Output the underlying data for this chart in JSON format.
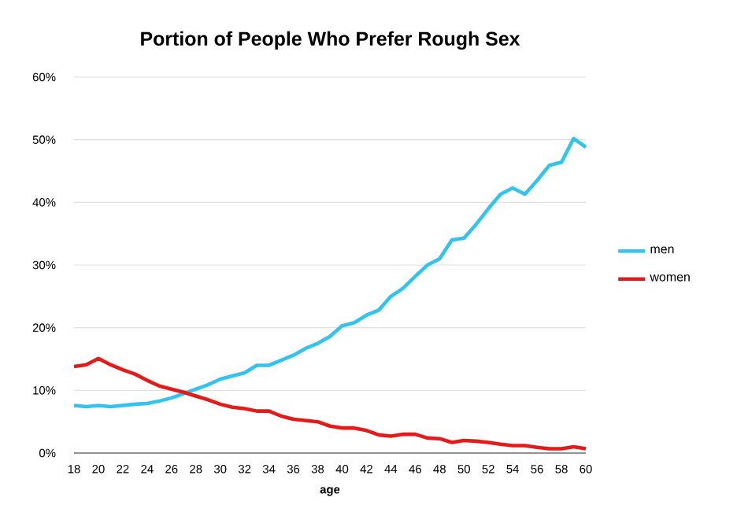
{
  "chart_data": {
    "type": "line",
    "title": "Portion of People Who Prefer Rough Sex",
    "xlabel": "age",
    "x": [
      18,
      19,
      20,
      21,
      22,
      23,
      24,
      25,
      26,
      27,
      28,
      29,
      30,
      31,
      32,
      33,
      34,
      35,
      36,
      37,
      38,
      39,
      40,
      41,
      42,
      43,
      44,
      45,
      46,
      47,
      48,
      49,
      50,
      51,
      52,
      53,
      54,
      55,
      56,
      57,
      58,
      59,
      60
    ],
    "series": [
      {
        "name": "men",
        "color": "#33c3ee",
        "values": [
          7.6,
          7.4,
          7.6,
          7.4,
          7.6,
          7.8,
          7.9,
          8.3,
          8.8,
          9.5,
          10.2,
          10.9,
          11.8,
          12.3,
          12.8,
          14.0,
          14.0,
          14.8,
          15.6,
          16.7,
          17.5,
          18.6,
          20.3,
          20.8,
          22.0,
          22.8,
          25.0,
          26.3,
          28.2,
          30.0,
          31.0,
          34.0,
          34.3,
          36.5,
          39.0,
          41.3,
          42.3,
          41.3,
          43.5,
          45.9,
          46.4,
          50.2,
          48.8
        ]
      },
      {
        "name": "women",
        "color": "#e41b1b",
        "values": [
          13.8,
          14.1,
          15.1,
          14.1,
          13.3,
          12.6,
          11.6,
          10.7,
          10.2,
          9.7,
          9.1,
          8.5,
          7.8,
          7.3,
          7.1,
          6.7,
          6.7,
          5.9,
          5.4,
          5.2,
          5.0,
          4.3,
          4.0,
          4.0,
          3.6,
          2.9,
          2.7,
          3.0,
          3.0,
          2.4,
          2.3,
          1.7,
          2.0,
          1.9,
          1.7,
          1.4,
          1.2,
          1.2,
          0.9,
          0.7,
          0.7,
          1.0,
          0.7
        ]
      }
    ],
    "xlim": [
      18,
      60
    ],
    "xticks": [
      18,
      20,
      22,
      24,
      26,
      28,
      30,
      32,
      34,
      36,
      38,
      40,
      42,
      44,
      46,
      48,
      50,
      52,
      54,
      56,
      58,
      60
    ],
    "ylim": [
      0,
      60
    ],
    "yticks": [
      {
        "value": 0,
        "label": "0%"
      },
      {
        "value": 10,
        "label": "10%"
      },
      {
        "value": 20,
        "label": "20%"
      },
      {
        "value": 30,
        "label": "30%"
      },
      {
        "value": 40,
        "label": "40%"
      },
      {
        "value": 50,
        "label": "50%"
      },
      {
        "value": 60,
        "label": "60%"
      }
    ],
    "grid": "y",
    "legend": "right"
  }
}
